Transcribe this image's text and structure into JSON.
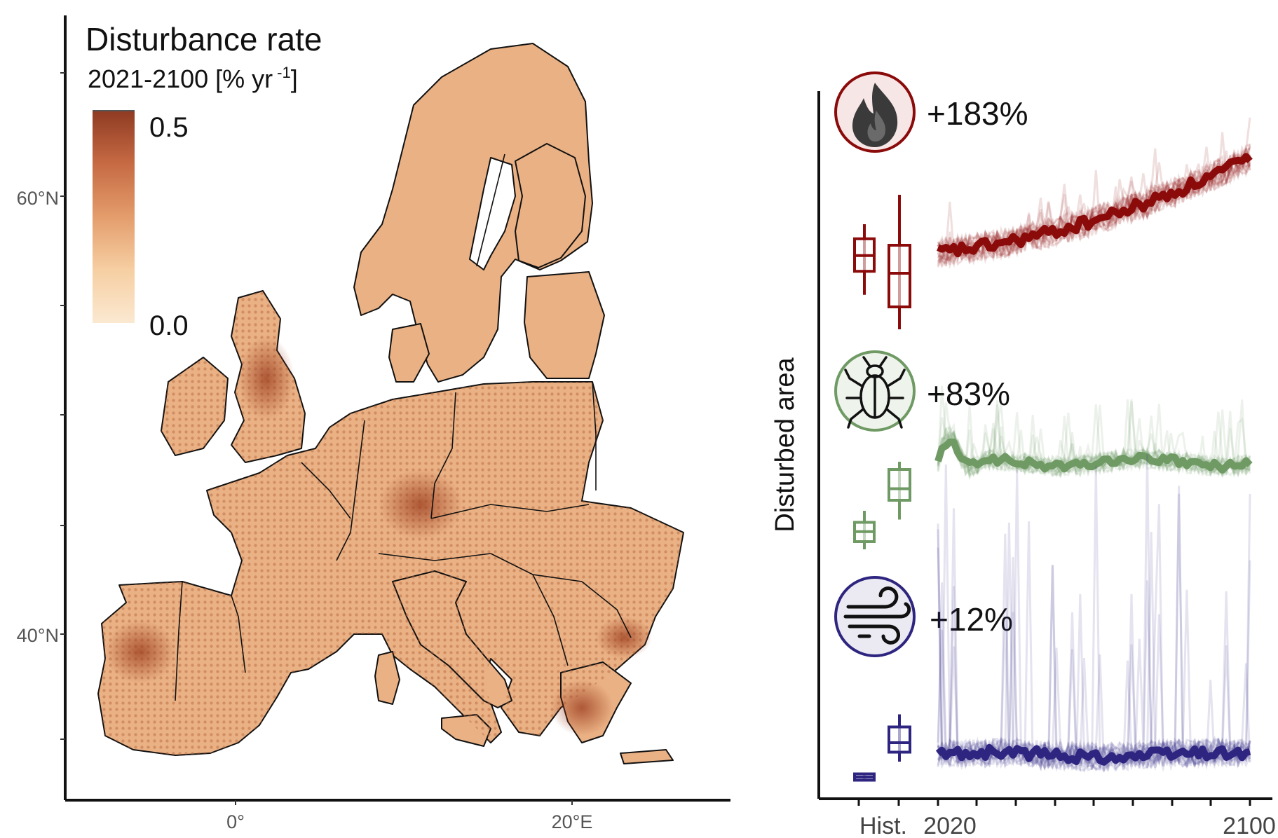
{
  "map": {
    "legend": {
      "title": "Disturbance rate",
      "period": "2021-2100 [% yr",
      "exponent": "-1",
      "close": "]",
      "max_label": "0.5",
      "min_label": "0.0",
      "colors": [
        "#8e3a22",
        "#c66a43",
        "#e49d6c",
        "#f6cfa3",
        "#fbe9d2"
      ]
    },
    "lat_labels": [
      "60°N",
      "40°N"
    ],
    "lon_labels": [
      "0°",
      "20°E"
    ],
    "land_color": "#eab184",
    "border_color": "#111111"
  },
  "chart_data": {
    "type": "line",
    "ylabel": "Disturbed area",
    "x_tick_labels": [
      "Hist.",
      "2020",
      "2100"
    ],
    "x": [
      2021,
      2100
    ],
    "series": [
      {
        "name": "fire",
        "icon": "fire-icon",
        "change_label": "+183%",
        "color": "#8b0a0a",
        "boxplots": [
          {
            "q1": 0.33,
            "q3": 0.62,
            "median": 0.47,
            "min": 0.12,
            "max": 0.75
          },
          {
            "q1": 0.2,
            "q3": 0.75,
            "median": 0.5,
            "min": 0.0,
            "max": 1.2
          }
        ]
      },
      {
        "name": "bark beetle",
        "icon": "beetle-icon",
        "change_label": "+83%",
        "color": "#6f9a64",
        "boxplots": [
          {
            "q1": 0.2,
            "q3": 0.45,
            "median": 0.33,
            "min": 0.1,
            "max": 0.6
          },
          {
            "q1": 0.6,
            "q3": 1.0,
            "median": 0.75,
            "min": 0.35,
            "max": 1.1
          }
        ]
      },
      {
        "name": "wind",
        "icon": "wind-icon",
        "change_label": "+12%",
        "color": "#2e2580",
        "boxplots": [
          {
            "q1": 0.05,
            "q3": 0.15,
            "median": 0.1,
            "min": 0.05,
            "max": 0.15
          },
          {
            "q1": 0.35,
            "q3": 0.75,
            "median": 0.5,
            "min": 0.2,
            "max": 0.95
          }
        ]
      }
    ]
  }
}
